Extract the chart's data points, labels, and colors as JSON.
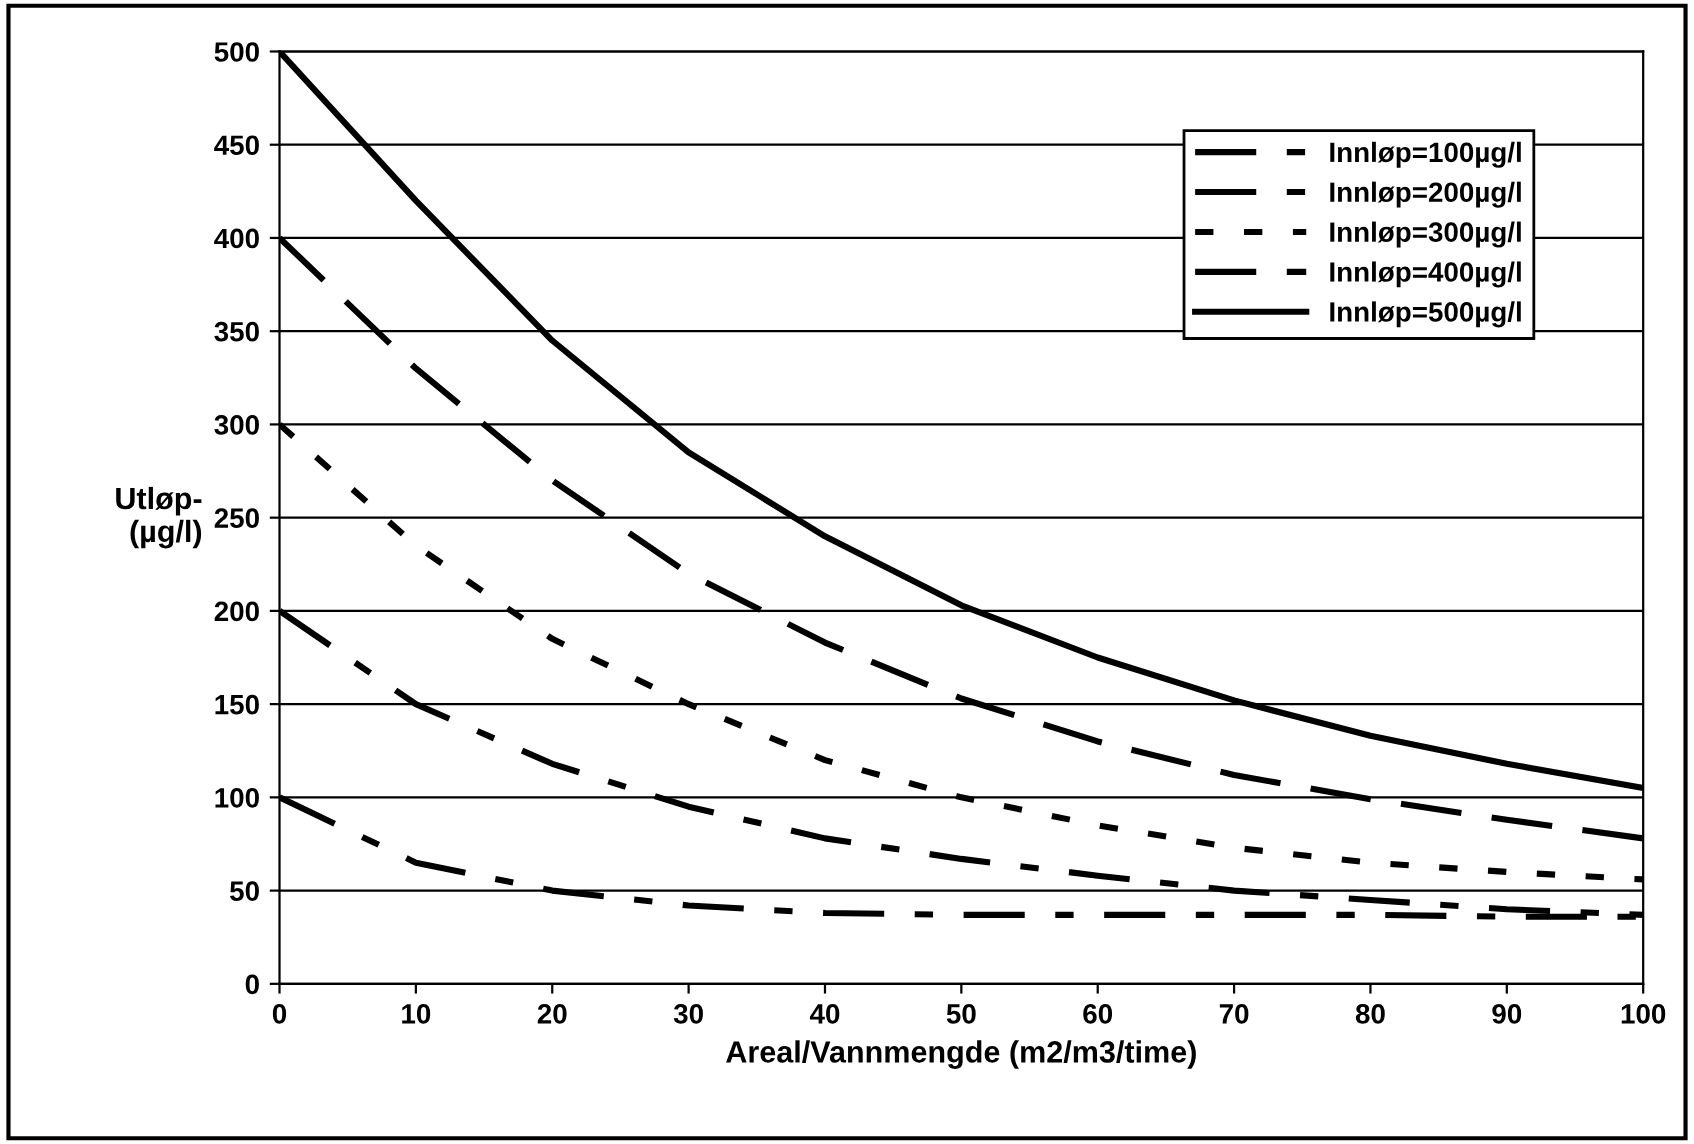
{
  "chart_data": {
    "type": "line",
    "xlabel": "Areal/Vannmengde (m2/m3/time)",
    "ylabel": "Utløp-\n(µg/l)",
    "x": [
      0,
      10,
      20,
      30,
      40,
      50,
      60,
      70,
      80,
      90,
      100
    ],
    "series": [
      {
        "name": "Innløp=100µg/l",
        "color": "#000000",
        "line_style": "dashdot",
        "values": [
          100,
          65,
          50,
          42,
          38,
          37,
          37,
          37,
          37,
          36,
          36
        ]
      },
      {
        "name": "Innløp=200µg/l",
        "color": "#000000",
        "line_style": "dashdot",
        "values": [
          200,
          150,
          118,
          95,
          78,
          67,
          58,
          50,
          45,
          40,
          37
        ]
      },
      {
        "name": "Innløp=300µg/l",
        "color": "#000000",
        "line_style": "dotted",
        "values": [
          300,
          235,
          185,
          150,
          120,
          100,
          85,
          73,
          65,
          60,
          56
        ]
      },
      {
        "name": "Innløp=400µg/l",
        "color": "#000000",
        "line_style": "dashed",
        "values": [
          400,
          330,
          270,
          220,
          183,
          153,
          130,
          112,
          99,
          88,
          78
        ]
      },
      {
        "name": "Innløp=500µg/l",
        "color": "#000000",
        "line_style": "solid",
        "values": [
          500,
          420,
          345,
          285,
          240,
          203,
          175,
          152,
          133,
          118,
          105
        ]
      }
    ],
    "xlim": [
      0,
      100
    ],
    "xticks": [
      0,
      10,
      20,
      30,
      40,
      50,
      60,
      70,
      80,
      90,
      100
    ],
    "ylim": [
      0,
      500
    ],
    "yticks": [
      0,
      50,
      100,
      150,
      200,
      250,
      300,
      350,
      400,
      450,
      500
    ],
    "grid": "y",
    "legend": "top right",
    "marker": "none"
  }
}
